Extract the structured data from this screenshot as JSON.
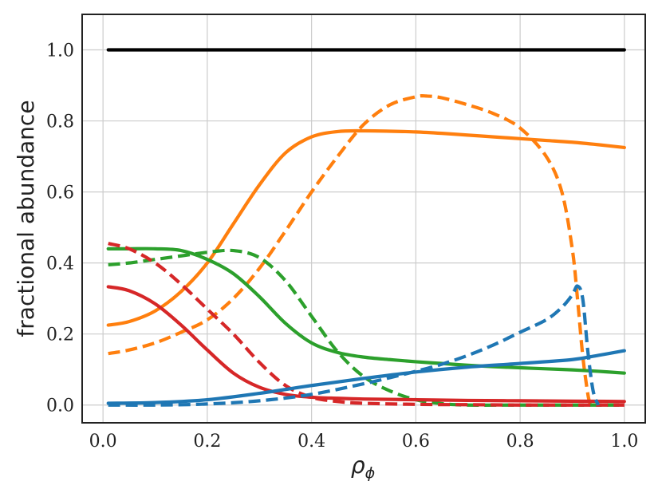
{
  "chart_data": {
    "type": "line",
    "xlabel": "ρ",
    "xlabel_sub": "ϕ",
    "ylabel": "fractional abundance",
    "xlim": [
      -0.04,
      1.04
    ],
    "ylim": [
      -0.05,
      1.1
    ],
    "grid": true,
    "x_ticks": [
      0.0,
      0.2,
      0.4,
      0.6,
      0.8,
      1.0
    ],
    "x_tick_labels": [
      "0.0",
      "0.2",
      "0.4",
      "0.6",
      "0.8",
      "1.0"
    ],
    "y_ticks": [
      0.0,
      0.2,
      0.4,
      0.6,
      0.8,
      1.0
    ],
    "y_tick_labels": [
      "0.0",
      "0.2",
      "0.4",
      "0.6",
      "0.8",
      "1.0"
    ],
    "series": [
      {
        "color": "#000000",
        "dash": false,
        "x": [
          0.01,
          1.0
        ],
        "y": [
          1.0,
          1.0
        ]
      },
      {
        "color": "#ff7f0e",
        "dash": false,
        "x": [
          0.01,
          0.05,
          0.1,
          0.15,
          0.2,
          0.25,
          0.3,
          0.35,
          0.4,
          0.45,
          0.5,
          0.55,
          0.6,
          0.65,
          0.7,
          0.75,
          0.8,
          0.85,
          0.9,
          0.95,
          1.0
        ],
        "y": [
          0.225,
          0.235,
          0.265,
          0.32,
          0.4,
          0.51,
          0.62,
          0.71,
          0.755,
          0.77,
          0.772,
          0.771,
          0.769,
          0.765,
          0.76,
          0.755,
          0.75,
          0.745,
          0.74,
          0.733,
          0.725
        ]
      },
      {
        "color": "#ff7f0e",
        "dash": true,
        "x": [
          0.01,
          0.05,
          0.1,
          0.15,
          0.2,
          0.25,
          0.3,
          0.35,
          0.4,
          0.45,
          0.5,
          0.55,
          0.6,
          0.62,
          0.65,
          0.7,
          0.75,
          0.8,
          0.85,
          0.88,
          0.9,
          0.91,
          0.92,
          0.93,
          0.935
        ],
        "y": [
          0.145,
          0.155,
          0.175,
          0.205,
          0.24,
          0.3,
          0.385,
          0.49,
          0.6,
          0.7,
          0.79,
          0.845,
          0.868,
          0.87,
          0.865,
          0.845,
          0.82,
          0.78,
          0.7,
          0.6,
          0.44,
          0.3,
          0.14,
          0.03,
          0.0
        ]
      },
      {
        "color": "#2ca02c",
        "dash": false,
        "x": [
          0.01,
          0.05,
          0.1,
          0.15,
          0.2,
          0.25,
          0.3,
          0.35,
          0.4,
          0.45,
          0.5,
          0.55,
          0.6,
          0.65,
          0.7,
          0.75,
          0.8,
          0.85,
          0.9,
          0.95,
          1.0
        ],
        "y": [
          0.44,
          0.44,
          0.44,
          0.435,
          0.41,
          0.37,
          0.305,
          0.23,
          0.175,
          0.148,
          0.135,
          0.128,
          0.122,
          0.117,
          0.112,
          0.108,
          0.105,
          0.102,
          0.099,
          0.095,
          0.09
        ]
      },
      {
        "color": "#2ca02c",
        "dash": true,
        "x": [
          0.01,
          0.05,
          0.1,
          0.15,
          0.2,
          0.25,
          0.3,
          0.35,
          0.4,
          0.45,
          0.5,
          0.55,
          0.6,
          0.65,
          0.7,
          0.8,
          0.9,
          1.0
        ],
        "y": [
          0.395,
          0.4,
          0.41,
          0.42,
          0.43,
          0.435,
          0.415,
          0.35,
          0.25,
          0.15,
          0.08,
          0.04,
          0.015,
          0.004,
          0.0,
          0.0,
          0.0,
          0.0
        ]
      },
      {
        "color": "#d62728",
        "dash": false,
        "x": [
          0.01,
          0.05,
          0.1,
          0.15,
          0.2,
          0.25,
          0.3,
          0.35,
          0.4,
          0.45,
          0.5,
          0.6,
          0.7,
          0.8,
          0.9,
          1.0
        ],
        "y": [
          0.333,
          0.322,
          0.285,
          0.225,
          0.155,
          0.09,
          0.05,
          0.03,
          0.022,
          0.019,
          0.017,
          0.015,
          0.013,
          0.012,
          0.011,
          0.01
        ]
      },
      {
        "color": "#d62728",
        "dash": true,
        "x": [
          0.01,
          0.05,
          0.1,
          0.15,
          0.2,
          0.25,
          0.3,
          0.35,
          0.4,
          0.45,
          0.5,
          0.6,
          0.7,
          0.8,
          0.9,
          1.0
        ],
        "y": [
          0.455,
          0.44,
          0.4,
          0.34,
          0.27,
          0.2,
          0.12,
          0.055,
          0.022,
          0.01,
          0.005,
          0.002,
          0.001,
          0.0,
          0.0,
          0.0
        ]
      },
      {
        "color": "#1f77b4",
        "dash": false,
        "x": [
          0.01,
          0.1,
          0.2,
          0.3,
          0.4,
          0.5,
          0.6,
          0.7,
          0.8,
          0.9,
          0.95,
          1.0
        ],
        "y": [
          0.005,
          0.007,
          0.015,
          0.033,
          0.055,
          0.075,
          0.093,
          0.107,
          0.117,
          0.128,
          0.14,
          0.153
        ]
      },
      {
        "color": "#1f77b4",
        "dash": true,
        "x": [
          0.01,
          0.1,
          0.2,
          0.3,
          0.4,
          0.5,
          0.55,
          0.6,
          0.65,
          0.7,
          0.75,
          0.8,
          0.85,
          0.88,
          0.9,
          0.91,
          0.92,
          0.93,
          0.94,
          0.95
        ],
        "y": [
          0.0,
          0.0,
          0.003,
          0.012,
          0.03,
          0.06,
          0.077,
          0.095,
          0.115,
          0.14,
          0.17,
          0.205,
          0.24,
          0.275,
          0.31,
          0.335,
          0.3,
          0.15,
          0.04,
          0.0
        ]
      }
    ]
  }
}
